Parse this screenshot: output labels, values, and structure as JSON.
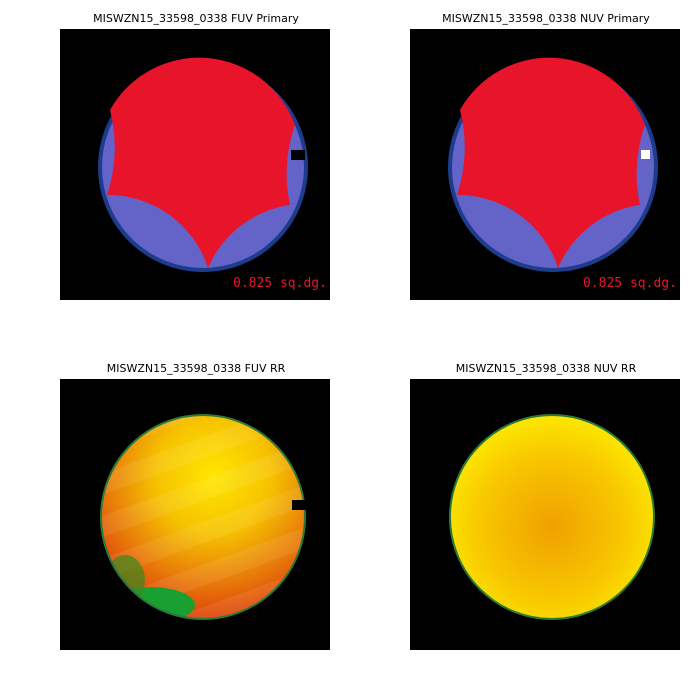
{
  "panels": [
    {
      "title": "MISWZN15_33598_0338 FUV Primary",
      "area_label": "0.825 sq.dg."
    },
    {
      "title": "MISWZN15_33598_0338 NUV Primary",
      "area_label": "0.825 sq.dg."
    },
    {
      "title": "MISWZN15_33598_0338 FUV RR"
    },
    {
      "title": "MISWZN15_33598_0338 NUV RR"
    }
  ]
}
